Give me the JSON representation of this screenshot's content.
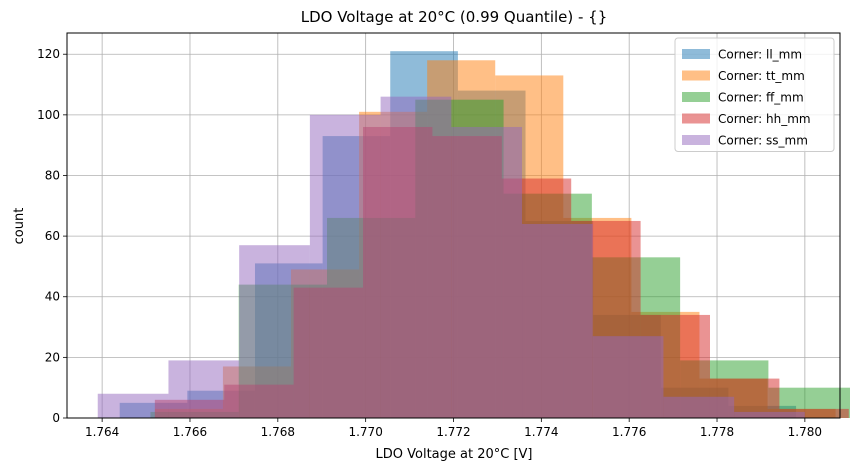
{
  "chart_data": {
    "type": "histogram",
    "title": "LDO Voltage at 20°C (0.99 Quantile) - {}",
    "xlabel": "LDO Voltage at 20°C [V]",
    "ylabel": "count",
    "xlim": [
      1.7632,
      1.7808
    ],
    "ylim": [
      0,
      127
    ],
    "xticks": [
      "1.764",
      "1.766",
      "1.768",
      "1.770",
      "1.772",
      "1.774",
      "1.776",
      "1.778",
      "1.780"
    ],
    "xtick_values": [
      1.764,
      1.766,
      1.768,
      1.77,
      1.772,
      1.774,
      1.776,
      1.778,
      1.78
    ],
    "yticks": [
      "0",
      "20",
      "40",
      "60",
      "80",
      "100",
      "120"
    ],
    "ytick_values": [
      0,
      20,
      40,
      60,
      80,
      100,
      120
    ],
    "grid": true,
    "legend_position": "top-right",
    "bar_alpha": 0.5,
    "series": [
      {
        "name": "Corner: ll_mm",
        "color": "#1f77b4",
        "bin_edges": [
          1.7644,
          1.76594,
          1.76748,
          1.76902,
          1.77056,
          1.7721,
          1.77364,
          1.77518,
          1.77672,
          1.77826,
          1.7798
        ],
        "counts": [
          5,
          9,
          51,
          93,
          121,
          108,
          65,
          34,
          10,
          4
        ]
      },
      {
        "name": "Corner: tt_mm",
        "color": "#ff7f0e",
        "bin_edges": [
          1.7652,
          1.76675,
          1.7683,
          1.76985,
          1.7714,
          1.77295,
          1.7745,
          1.77605,
          1.7776,
          1.77915,
          1.7807
        ],
        "counts": [
          3,
          17,
          49,
          101,
          118,
          113,
          66,
          35,
          13,
          3
        ]
      },
      {
        "name": "Corner: ff_mm",
        "color": "#2ca02c",
        "bin_edges": [
          1.7651,
          1.76711,
          1.76912,
          1.77113,
          1.77314,
          1.77515,
          1.77716,
          1.77917,
          1.78118
        ],
        "counts": [
          2,
          44,
          66,
          105,
          74,
          53,
          19,
          10
        ]
      },
      {
        "name": "Corner: hh_mm",
        "color": "#d62728",
        "bin_edges": [
          1.7652,
          1.76678,
          1.76836,
          1.76994,
          1.77152,
          1.7731,
          1.77468,
          1.77626,
          1.77784,
          1.77942,
          1.781
        ],
        "counts": [
          6,
          11,
          43,
          96,
          93,
          79,
          65,
          34,
          13,
          3
        ]
      },
      {
        "name": "Corner: ss_mm",
        "color": "#9467bd",
        "bin_edges": [
          1.7639,
          1.76551,
          1.76712,
          1.76873,
          1.77034,
          1.77195,
          1.77356,
          1.77517,
          1.77678,
          1.77839,
          1.78
        ],
        "counts": [
          8,
          19,
          57,
          100,
          106,
          96,
          64,
          27,
          7,
          2
        ]
      }
    ]
  }
}
